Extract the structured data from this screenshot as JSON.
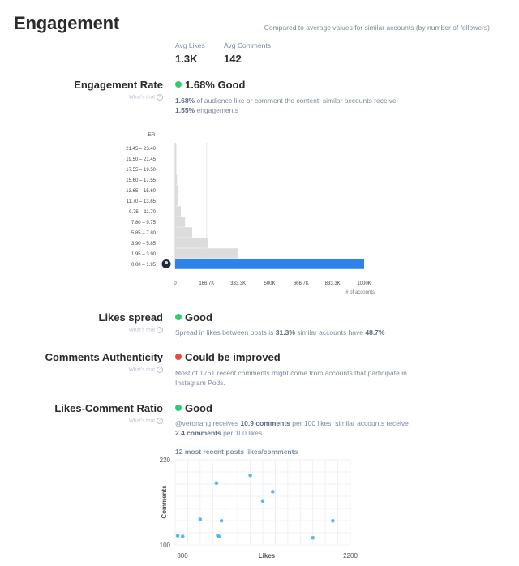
{
  "header": {
    "title": "Engagement",
    "compare_note": "Compared to average values for similar accounts (by number of followers)"
  },
  "averages": {
    "likes_label": "Avg Likes",
    "likes_value": "1.3K",
    "comments_label": "Avg Comments",
    "comments_value": "142"
  },
  "whats_that": "What's that",
  "metrics": {
    "engagement_rate": {
      "label": "Engagement Rate",
      "value": "1.68% Good",
      "status_color": "#2ecc71",
      "desc_bold1": "1.68%",
      "desc_mid": " of audience like or comment the content, similar accounts receive",
      "desc_bold2": "1.55%",
      "desc_end": " engagements"
    },
    "likes_spread": {
      "label": "Likes spread",
      "value": "Good",
      "status_color": "#2ecc71",
      "desc_start": "Spread in likes between posts is ",
      "desc_bold1": "31.3%",
      "desc_mid": " similar accounts have ",
      "desc_bold2": "48.7%"
    },
    "comments_authenticity": {
      "label": "Comments Authenticity",
      "value": "Could be improved",
      "status_color": "#e74c3c",
      "desc": "Most of 1761 recent comments might come from accounts that participate in Instagram Pods."
    },
    "likes_comment_ratio": {
      "label": "Likes-Comment Ratio",
      "value": "Good",
      "status_color": "#2ecc71",
      "desc_start": "@veronang receives ",
      "desc_bold1": "10.9 comments",
      "desc_mid": " per 100 likes, similar accounts receive ",
      "desc_bold2": "2.4 comments",
      "desc_end": " per 100 likes."
    }
  },
  "chart_data": [
    {
      "type": "bar",
      "orientation": "horizontal",
      "ylabel": "ER",
      "xlabel": "# of accounts",
      "categories": [
        "21.45 – 23.40",
        "19.50 – 21.45",
        "17.55 – 19.50",
        "15.60 – 17.55",
        "13.65 – 15.60",
        "11.70 – 13.65",
        "9.75 – 11.70",
        "7.80 – 9.75",
        "5.85 – 7.80",
        "3.90 – 5.85",
        "1.95 – 3.90",
        "0.00 – 1.95"
      ],
      "values": [
        1000,
        1500,
        2500,
        10000,
        18000,
        14000,
        30000,
        52000,
        90000,
        175000,
        330000,
        1000000
      ],
      "highlight_index": 11,
      "highlight_color": "#2d83ec",
      "bar_color": "#dcdcdc",
      "xlim": [
        0,
        1000000
      ],
      "x_ticks": [
        "0",
        "166.7K",
        "333.3K",
        "500K",
        "666.7K",
        "833.3K",
        "1000K"
      ],
      "grid_values": [
        166667,
        333333
      ]
    },
    {
      "type": "scatter",
      "title": "12 most recent posts likes/comments",
      "xlabel": "Likes",
      "ylabel": "Comments",
      "xlim": [
        800,
        2200
      ],
      "ylim": [
        100,
        220
      ],
      "x_ticks": [
        "800",
        "2200"
      ],
      "y_ticks": [
        "220",
        "100"
      ],
      "point_color": "#5cb8f0",
      "points": [
        {
          "x": 820,
          "y": 113
        },
        {
          "x": 860,
          "y": 112
        },
        {
          "x": 1000,
          "y": 136
        },
        {
          "x": 1130,
          "y": 187
        },
        {
          "x": 1140,
          "y": 113
        },
        {
          "x": 1150,
          "y": 112
        },
        {
          "x": 1170,
          "y": 134
        },
        {
          "x": 1400,
          "y": 198
        },
        {
          "x": 1500,
          "y": 162
        },
        {
          "x": 1580,
          "y": 175
        },
        {
          "x": 1900,
          "y": 110
        },
        {
          "x": 2060,
          "y": 134
        }
      ]
    }
  ]
}
